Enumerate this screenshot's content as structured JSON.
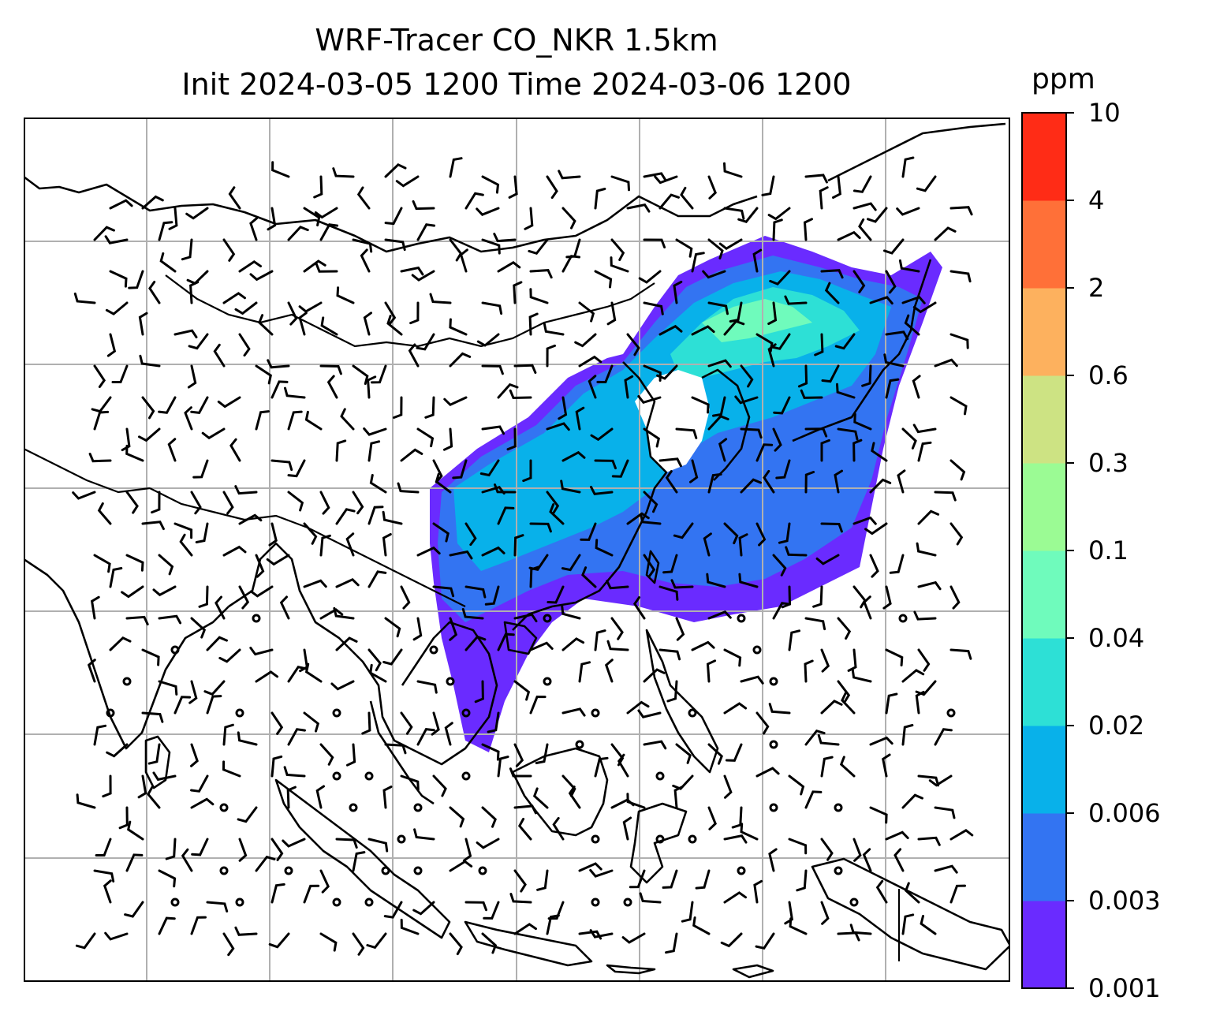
{
  "title": {
    "line1": "WRF-Tracer CO_NKR 1.5km",
    "line2": "Init 2024-03-05 1200 Time 2024-03-06 1200"
  },
  "colorbar": {
    "unit": "ppm",
    "levels": [
      "0.001",
      "0.003",
      "0.006",
      "0.02",
      "0.04",
      "0.1",
      "0.3",
      "0.6",
      "2",
      "4",
      "10"
    ],
    "colors": [
      "#6a2bff",
      "#3374f2",
      "#08b1ea",
      "#2de0d6",
      "#6ffbbc",
      "#9bfb94",
      "#cde383",
      "#fdb15e",
      "#ff7038",
      "#ff2c16"
    ]
  },
  "map": {
    "gridlines": "on",
    "gridline_color": "#b0b0b0",
    "overlays": [
      "coastlines",
      "country-borders",
      "wind-barbs"
    ],
    "tracer_field_colors": [
      "#6a2bff",
      "#3374f2",
      "#08b1ea",
      "#2de0d6",
      "#6ffbbc"
    ]
  }
}
